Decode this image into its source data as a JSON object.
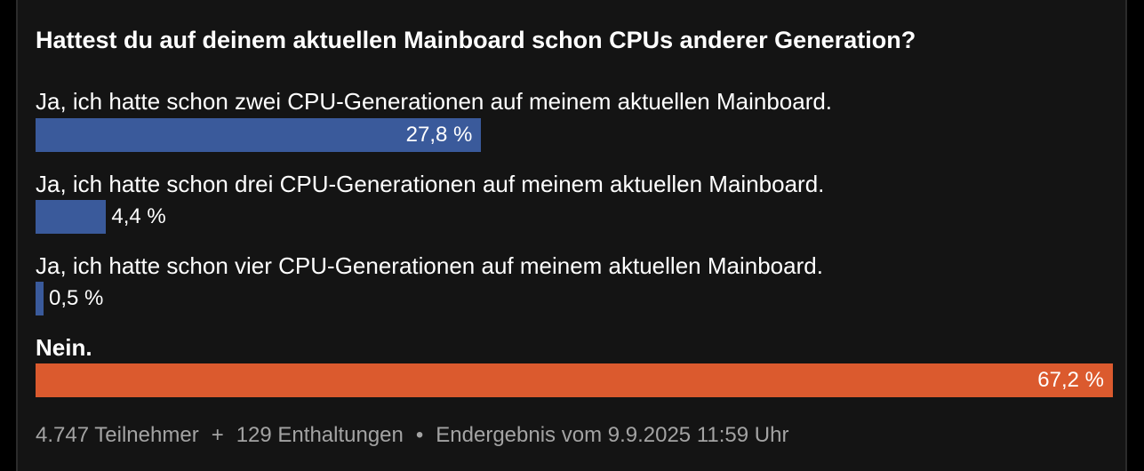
{
  "colors": {
    "background": "#141414",
    "bar_blue": "#3a5a9b",
    "bar_orange": "#db5a2e",
    "text": "#ffffff",
    "muted": "#a3a3a3"
  },
  "chart_data": {
    "type": "bar",
    "title": "Hattest du auf deinem aktuellen Mainboard schon CPUs anderer Generation?",
    "categories": [
      "Ja, ich hatte schon zwei CPU-Generationen auf meinem aktuellen Mainboard.",
      "Ja, ich hatte schon drei CPU-Generationen auf meinem aktuellen Mainboard.",
      "Ja, ich hatte schon vier CPU-Generationen auf meinem aktuellen Mainboard.",
      "Nein."
    ],
    "values": [
      27.8,
      4.4,
      0.5,
      67.2
    ],
    "value_labels": [
      "27,8 %",
      "4,4 %",
      "0,5 %",
      "67,2 %"
    ],
    "highlighted": [
      false,
      false,
      false,
      true
    ],
    "xlim": [
      0,
      67.2
    ]
  },
  "footer": {
    "participants": "4.747 Teilnehmer",
    "sep1": "+",
    "abstentions": "129 Enthaltungen",
    "sep2": "•",
    "result": "Endergebnis vom 9.9.2025 11:59 Uhr"
  }
}
